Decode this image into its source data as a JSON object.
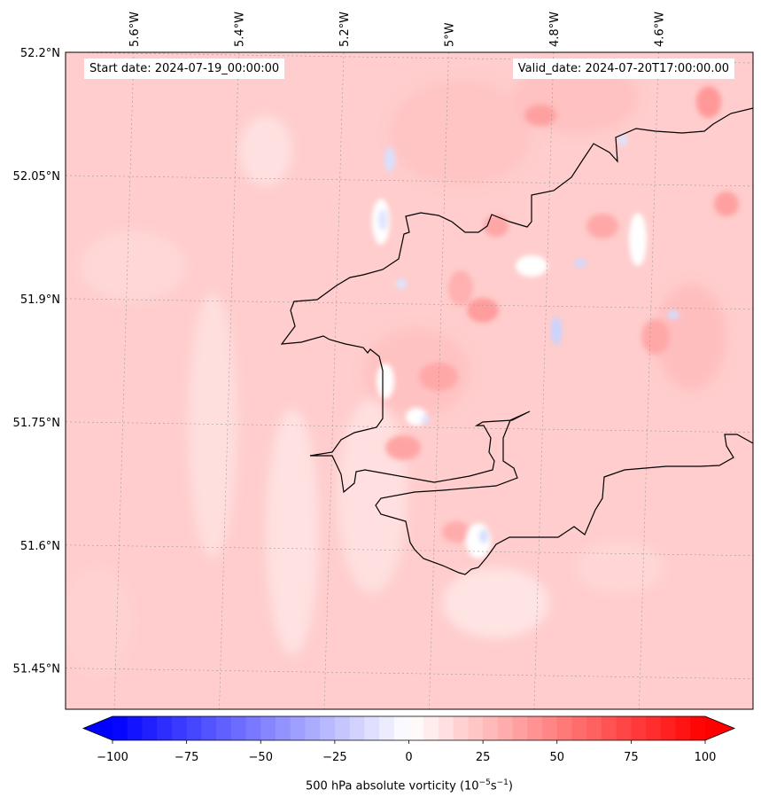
{
  "map": {
    "extent": {
      "lon_left": -5.73,
      "lon_right": -4.42,
      "lat_bottom": 51.4,
      "lat_top": 52.2
    },
    "background_color": "#ffcdcd",
    "coastline_color": "#000000",
    "gridline_color": "#9a9a9a",
    "lat_ticks": [
      {
        "value": 52.2,
        "label": "52.2°N"
      },
      {
        "value": 52.05,
        "label": "52.05°N"
      },
      {
        "value": 51.9,
        "label": "51.9°N"
      },
      {
        "value": 51.75,
        "label": "51.75°N"
      },
      {
        "value": 51.6,
        "label": "51.6°N"
      },
      {
        "value": 51.45,
        "label": "51.45°N"
      }
    ],
    "lon_ticks": [
      {
        "value": -5.6,
        "label": "5.6°W"
      },
      {
        "value": -5.4,
        "label": "5.4°W"
      },
      {
        "value": -5.2,
        "label": "5.2°W"
      },
      {
        "value": -5.0,
        "label": "5°W"
      },
      {
        "value": -4.8,
        "label": "4.8°W"
      },
      {
        "value": -4.6,
        "label": "4.6°W"
      }
    ],
    "start_date": "Start date: 2024-07-19_00:00:00",
    "valid_date": "Valid_date: 2024-07-20T17:00:00.00"
  },
  "colorbar": {
    "min": -100,
    "max": 100,
    "levels": 40,
    "colors": {
      "low": "#0000ff",
      "mid": "#ffffff",
      "high": "#ff0000"
    },
    "ticks": [
      {
        "value": -100,
        "label": "−100"
      },
      {
        "value": -75,
        "label": "−75"
      },
      {
        "value": -50,
        "label": "−50"
      },
      {
        "value": -25,
        "label": "−25"
      },
      {
        "value": 0,
        "label": "0"
      },
      {
        "value": 25,
        "label": "25"
      },
      {
        "value": 50,
        "label": "50"
      },
      {
        "value": 75,
        "label": "75"
      },
      {
        "value": 100,
        "label": "100"
      }
    ],
    "label_main": "500 hPa absolute vorticity (10",
    "label_exp1": "−5",
    "label_mid": "s",
    "label_exp2": "−1",
    "label_end": ")"
  }
}
